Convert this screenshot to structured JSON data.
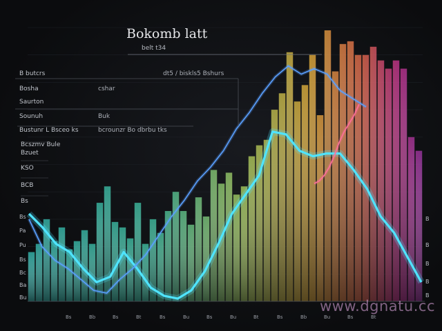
{
  "header": {
    "title": "Bokomb latt",
    "subtitle": "belt t34"
  },
  "panel": {
    "top_right_text": "dt5 / biskls5 Bshurs",
    "rows": [
      {
        "left": "B butcrs",
        "right": ""
      },
      {
        "left": "Bosha",
        "right": "cshar"
      },
      {
        "left": "Saurton",
        "right": ""
      },
      {
        "left": "Sounuh",
        "right": "Buk"
      },
      {
        "left": "Bustunr L Bsceo ks",
        "right": "bcrounzr Bo dbrbu tks"
      },
      {
        "left": "Bcszmv Bule",
        "right": ""
      },
      {
        "left": "Bzuet",
        "right": ""
      },
      {
        "left": "KSO",
        "right": ""
      },
      {
        "left": "BCB",
        "right": ""
      },
      {
        "left": "Bs",
        "right": ""
      }
    ]
  },
  "y_ticks_left": [
    "Bs",
    "Pa",
    "Pu",
    "Bs",
    "Bc",
    "Ba",
    "Bu"
  ],
  "y_ticks_right": [
    "B",
    "B",
    "B",
    "B",
    "B"
  ],
  "x_ticks": [
    "Bs",
    "Bb",
    "Bs",
    "Bt",
    "Bs",
    "Bu",
    "Bs",
    "Bu",
    "Bt",
    "Bs",
    "Bb",
    "Bu",
    "Bs",
    "Bt"
  ],
  "watermark": "www.dgnatu.cc",
  "colors": {
    "background": "#0b0c0e",
    "bar_start": "#2fb7b4",
    "bar_mid": "#c9d35a",
    "bar_peak": "#e8a032",
    "bar_end_magenta": "#c8348f",
    "bar_end_purple": "#7a35b8",
    "line_cyan": "#4fe4ff",
    "line_blue": "#5aa0ff",
    "line_warm": "#ff6f9a"
  },
  "chart_data": {
    "type": "bar",
    "title": "Bokomb latt",
    "ylim": [
      0,
      100
    ],
    "grid": true,
    "bars": [
      18,
      21,
      30,
      22,
      27,
      19,
      22,
      26,
      21,
      36,
      42,
      29,
      27,
      23,
      36,
      21,
      30,
      25,
      33,
      40,
      33,
      28,
      38,
      31,
      48,
      43,
      47,
      39,
      42,
      53,
      57,
      59,
      70,
      76,
      91,
      73,
      79,
      90,
      68,
      99,
      84,
      94,
      95,
      90,
      90,
      93,
      88,
      85,
      88,
      85,
      60,
      55
    ],
    "series": [
      {
        "values": [
          32,
          27,
          21,
          18,
          12,
          7,
          9,
          18,
          12,
          5,
          2,
          1,
          4,
          11,
          21,
          32,
          39,
          46,
          62,
          61,
          55,
          53,
          54,
          54,
          48,
          41,
          31,
          25,
          16,
          7
        ]
      },
      {
        "values": [
          30,
          20,
          15,
          12,
          8,
          4,
          3,
          8,
          12,
          17,
          24,
          31,
          37,
          44,
          49,
          55,
          63,
          69,
          76,
          82,
          86,
          83,
          85,
          83,
          77,
          74,
          71
        ]
      },
      {
        "values": [
          43,
          44,
          46,
          49,
          53,
          58,
          62,
          65,
          68,
          72
        ]
      }
    ]
  }
}
